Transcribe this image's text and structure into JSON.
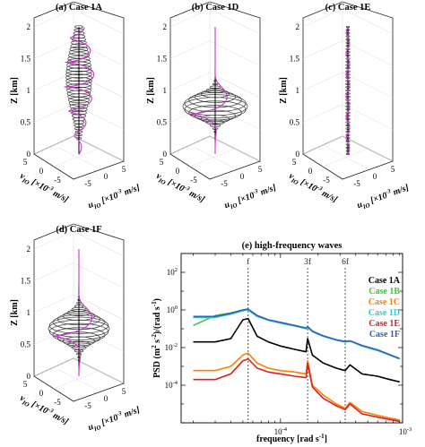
{
  "chart_data": [
    {
      "type": "3d-hodograph",
      "title": "(a) Case 1A",
      "zlabel": "Z [km]",
      "zticks": [
        "0",
        "0.5",
        "1",
        "1.5",
        "2"
      ],
      "zlim": [
        0,
        2
      ],
      "ulabel": "u",
      "usub": "IO",
      "uunit": " [×10",
      "uexp": "-3",
      "uunit2": " m/s]",
      "vlabel": "v",
      "vsub": "IO",
      "vunit": " [×10",
      "vexp": "-3",
      "vunit2": " m/s]",
      "uticks": [
        "-5",
        "0",
        "5"
      ],
      "vticks": [
        "5",
        "0",
        "-5"
      ],
      "profile": {
        "center": 1.2,
        "width": 0.75,
        "amp": 3.6,
        "floor": 0.22,
        "top": 2.0,
        "spiral_amp": 4.2,
        "spiral_turns": 2.6
      }
    },
    {
      "type": "3d-hodograph",
      "title": "(b) Case 1D",
      "zlabel": "Z [km]",
      "zticks": [
        "0",
        "0.5",
        "1",
        "1.5",
        "2"
      ],
      "zlim": [
        0,
        2
      ],
      "ulabel": "u",
      "usub": "IO",
      "uunit": " [×10",
      "uexp": "-3",
      "uunit2": " m/s]",
      "vlabel": "v",
      "vsub": "IO",
      "vunit": " [×10",
      "vexp": "-3",
      "vunit2": " m/s]",
      "uticks": [
        "-5",
        "0",
        "5"
      ],
      "vticks": [
        "5",
        "0",
        "-5"
      ],
      "profile": {
        "center": 0.75,
        "width": 0.22,
        "amp": 9.0,
        "floor": 0.0,
        "top": 1.3,
        "spiral_amp": 8.5,
        "spiral_turns": 1.2
      }
    },
    {
      "type": "3d-hodograph",
      "title": "(c) Case 1E",
      "zlabel": "Z [km]",
      "zticks": [
        "0",
        "0.5",
        "1",
        "1.5",
        "2"
      ],
      "zlim": [
        0,
        2
      ],
      "ulabel": "u",
      "usub": "IO",
      "uunit": " [×10",
      "uexp": "-3",
      "uunit2": " m/s]",
      "vlabel": "v",
      "vsub": "IO",
      "vunit": " [×10",
      "vexp": "-3",
      "vunit2": " m/s]",
      "uticks": [
        "-5",
        "0",
        "5"
      ],
      "vticks": [
        "5",
        "0",
        "-5"
      ],
      "profile": {
        "center": 1.0,
        "width": 2.0,
        "amp": 0.6,
        "floor": 0.0,
        "top": 2.0,
        "spiral_amp": 0.5,
        "spiral_turns": 3.0
      }
    },
    {
      "type": "3d-hodograph",
      "title": "(d) Case 1F",
      "zlabel": "Z [km]",
      "zticks": [
        "0",
        "0.5",
        "1",
        "1.5",
        "2"
      ],
      "zlim": [
        0,
        2
      ],
      "ulabel": "u",
      "usub": "IO",
      "uunit": " [×10",
      "uexp": "-3",
      "uunit2": " m/s]",
      "vlabel": "v",
      "vsub": "IO",
      "vunit": " [×10",
      "vexp": "-3",
      "vunit2": " m/s]",
      "uticks": [
        "-5",
        "0",
        "5"
      ],
      "vticks": [
        "5",
        "0",
        "-5"
      ],
      "profile": {
        "center": 0.75,
        "width": 0.25,
        "amp": 8.5,
        "floor": 0.0,
        "top": 1.4,
        "spiral_amp": 8.0,
        "spiral_turns": 1.2
      }
    },
    {
      "type": "line",
      "title": "(e) high-frequency waves",
      "xlabel": "frequency [rad s",
      "xlabel_exp": "-1",
      "xlabel_end": "]",
      "ylabel_parts": [
        "PSD (m",
        "2",
        " s",
        "-2",
        ")/(rad s",
        "-1",
        ")"
      ],
      "xscale": "log",
      "yscale": "log",
      "xlim": [
        1.6e-05,
        0.00095
      ],
      "ylim": [
        1e-06,
        1000
      ],
      "xticks": [
        {
          "value": 0.0001,
          "base": "10",
          "exp": "-4"
        },
        {
          "value": 0.001,
          "base": "10",
          "exp": "-3"
        }
      ],
      "yticks": [
        {
          "value": 0.0001,
          "base": "10",
          "exp": "-4"
        },
        {
          "value": 0.01,
          "base": "10",
          "exp": "-2"
        },
        {
          "value": 1,
          "base": "10",
          "exp": "0"
        },
        {
          "value": 100,
          "base": "10",
          "exp": "2"
        }
      ],
      "vlines": [
        {
          "label": "f",
          "x": 5.5e-05
        },
        {
          "label": "3f",
          "x": 0.000165
        },
        {
          "label": "6f",
          "x": 0.00033
        }
      ],
      "legend_position": "top-right",
      "series": [
        {
          "name": "Case 1A",
          "color": "#000000",
          "x": [
            2e-05,
            3e-05,
            4e-05,
            5e-05,
            5.5e-05,
            6.5e-05,
            8e-05,
            0.0001,
            0.00013,
            0.00016,
            0.000165,
            0.00018,
            0.00022,
            0.00028,
            0.00033,
            0.00036,
            0.00045,
            0.0006,
            0.00075,
            0.0009
          ],
          "y": [
            0.02,
            0.02,
            0.03,
            0.3,
            0.35,
            0.04,
            0.02,
            0.012,
            0.008,
            0.006,
            0.03,
            0.004,
            0.0015,
            0.0008,
            0.0006,
            0.0012,
            0.0004,
            0.0003,
            0.0002,
            0.00015
          ]
        },
        {
          "name": "Case 1B",
          "color": "#33cc33",
          "x": [
            2e-05,
            3e-05,
            4e-05,
            5e-05,
            5.5e-05,
            6.5e-05,
            8e-05,
            0.0001,
            0.00013,
            0.00016,
            0.000165,
            0.00018,
            0.00022,
            0.00028,
            0.00033,
            0.00036,
            0.00045,
            0.0006,
            0.00075,
            0.0009
          ],
          "y": [
            0.15,
            0.5,
            0.7,
            1.0,
            1.1,
            0.5,
            0.3,
            0.2,
            0.14,
            0.1,
            0.12,
            0.07,
            0.04,
            0.025,
            0.02,
            0.022,
            0.012,
            0.007,
            0.004,
            0.0025
          ]
        },
        {
          "name": "Case 1C",
          "color": "#ff8000",
          "x": [
            2e-05,
            3e-05,
            4e-05,
            5e-05,
            5.5e-05,
            6.5e-05,
            8e-05,
            0.0001,
            0.00013,
            0.00016,
            0.000165,
            0.00018,
            0.00022,
            0.00028,
            0.00033,
            0.00036,
            0.00045,
            0.0006,
            0.00075,
            0.0009
          ],
          "y": [
            0.0006,
            0.0006,
            0.001,
            0.004,
            0.005,
            0.0015,
            0.0008,
            0.0006,
            0.0005,
            0.0004,
            0.002,
            0.0001,
            3e-05,
            1e-05,
            6e-06,
            1.2e-05,
            4e-06,
            2.5e-06,
            1.8e-06,
            1.4e-06
          ]
        },
        {
          "name": "Case 1D",
          "color": "#33cccc",
          "x": [
            2e-05,
            3e-05,
            4e-05,
            5e-05,
            5.5e-05,
            6.5e-05,
            8e-05,
            0.0001,
            0.00013,
            0.00016,
            0.000165,
            0.00018,
            0.00022,
            0.00028,
            0.00033,
            0.00036,
            0.00045,
            0.0006,
            0.00075,
            0.0009
          ],
          "y": [
            0.4,
            0.4,
            0.6,
            0.9,
            1.0,
            0.45,
            0.28,
            0.2,
            0.14,
            0.1,
            0.12,
            0.07,
            0.04,
            0.025,
            0.02,
            0.022,
            0.012,
            0.007,
            0.004,
            0.0025
          ]
        },
        {
          "name": "Case 1E",
          "color": "#e02020",
          "x": [
            2e-05,
            3e-05,
            4e-05,
            5e-05,
            5.5e-05,
            6.5e-05,
            8e-05,
            0.0001,
            0.00013,
            0.00016,
            0.000165,
            0.00018,
            0.00022,
            0.00028,
            0.00033,
            0.00036,
            0.00045,
            0.0006,
            0.00075,
            0.0009
          ],
          "y": [
            0.0002,
            0.0002,
            0.0004,
            0.002,
            0.0025,
            0.0008,
            0.0005,
            0.0004,
            0.0003,
            0.00025,
            0.0015,
            8e-05,
            2e-05,
            8e-06,
            5e-06,
            1e-05,
            3e-06,
            2e-06,
            1.5e-06,
            1.2e-06
          ]
        },
        {
          "name": "Case 1F",
          "color": "#2f5fc0",
          "x": [
            2e-05,
            3e-05,
            4e-05,
            5e-05,
            5.5e-05,
            6.5e-05,
            8e-05,
            0.0001,
            0.00013,
            0.00016,
            0.000165,
            0.00018,
            0.00022,
            0.00028,
            0.00033,
            0.00036,
            0.00045,
            0.0006,
            0.00075,
            0.0009
          ],
          "y": [
            0.45,
            0.45,
            0.65,
            1.0,
            1.1,
            0.5,
            0.3,
            0.22,
            0.15,
            0.11,
            0.13,
            0.075,
            0.042,
            0.026,
            0.021,
            0.023,
            0.013,
            0.0075,
            0.0042,
            0.0026
          ]
        }
      ]
    }
  ]
}
